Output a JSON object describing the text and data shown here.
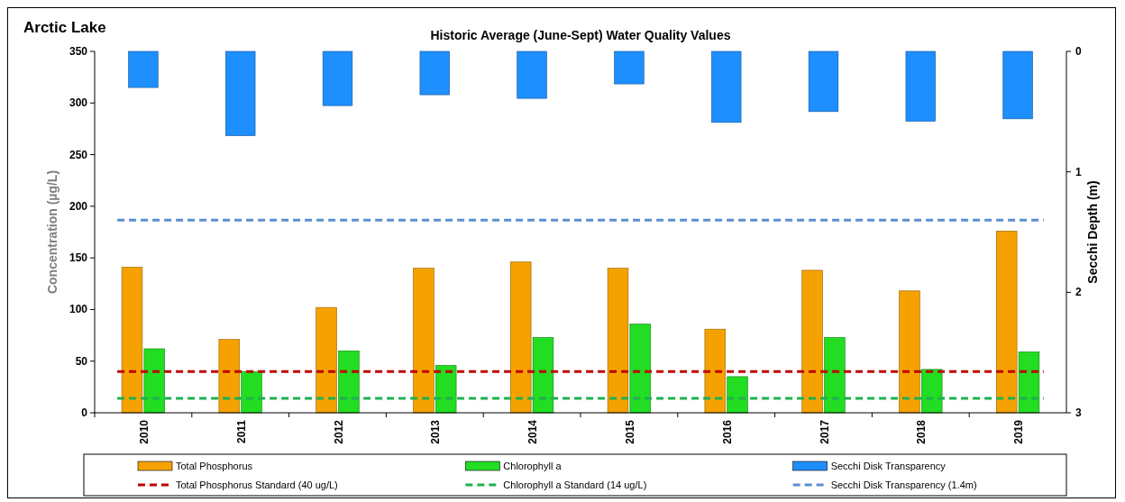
{
  "chart_data": {
    "type": "bar",
    "title": "Historic Average (June-Sept) Water Quality Values",
    "subtitle": "Arctic Lake",
    "ylabel": "Concentration (µg/L)",
    "y2label": "Secchi Depth (m)",
    "categories": [
      "2010",
      "2011",
      "2012",
      "2013",
      "2014",
      "2015",
      "2016",
      "2017",
      "2018",
      "2019"
    ],
    "series": [
      {
        "name": "Total Phosphorus",
        "color": "#f5a200",
        "values": [
          141,
          71,
          102,
          140,
          146,
          140,
          81,
          138,
          118,
          176
        ]
      },
      {
        "name": "Chlorophyll a",
        "color": "#22dd22",
        "values": [
          62,
          40,
          60,
          46,
          73,
          86,
          35,
          73,
          42,
          59
        ]
      },
      {
        "name": "Secchi Disk Transparency",
        "color": "#1e8fff",
        "axis": "y2",
        "values": [
          0.3,
          0.7,
          0.45,
          0.36,
          0.39,
          0.27,
          0.59,
          0.5,
          0.58,
          0.56
        ]
      }
    ],
    "ylim": [
      0,
      350
    ],
    "yticks": [
      0,
      50,
      100,
      150,
      200,
      250,
      300,
      350
    ],
    "y2lim": [
      3,
      0
    ],
    "y2ticks": [
      0,
      1,
      2,
      3
    ],
    "ref_lines": [
      {
        "axis": "y",
        "value": 40,
        "label": "Total Phosphorus Standard (40 ug/L)",
        "color": "#c00000",
        "line_style": "dashed"
      },
      {
        "axis": "y",
        "value": 14,
        "label": "Chlorophyll a Standard (14 ug/L)",
        "color": "#1fb050",
        "line_style": "dashed"
      },
      {
        "axis": "y2",
        "value": 1.4,
        "label": "Secchi Disk Transparency (1.4m)",
        "color": "#5b8fd0",
        "line_style": "dashed"
      }
    ],
    "legend": "bottom",
    "grid": false
  }
}
